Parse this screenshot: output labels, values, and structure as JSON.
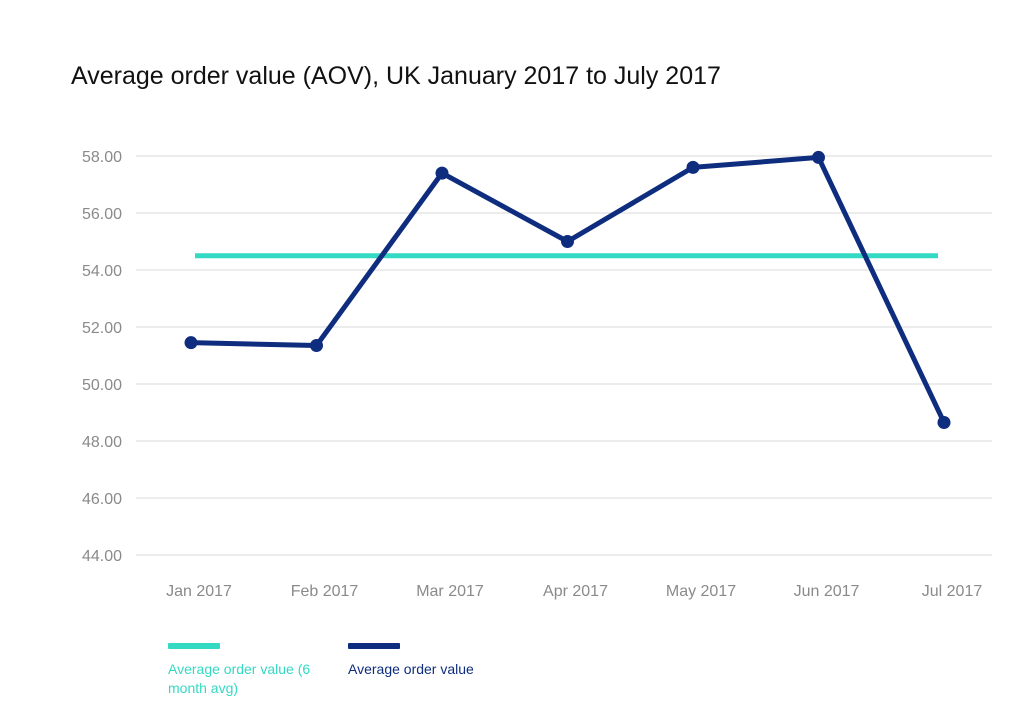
{
  "chart_data": {
    "type": "line",
    "title": "Average order value (AOV), UK January 2017 to July 2017",
    "categories": [
      "Jan 2017",
      "Feb 2017",
      "Mar 2017",
      "Apr 2017",
      "May 2017",
      "Jun 2017",
      "Jul 2017"
    ],
    "y_ticks": [
      "44.00",
      "46.00",
      "48.00",
      "50.00",
      "52.00",
      "54.00",
      "56.00",
      "58.00"
    ],
    "ylim": [
      44,
      58
    ],
    "grid": true,
    "legend_position": "bottom-left",
    "series": [
      {
        "name": "Average order value",
        "color": "#0f2d7e",
        "values": [
          51.45,
          51.35,
          57.4,
          55.0,
          57.6,
          57.95,
          48.65
        ]
      },
      {
        "name": "Average order value (6 month avg)",
        "color": "#34d9c3",
        "values": [
          54.5,
          54.5,
          54.5,
          54.5,
          54.5,
          54.5,
          54.5
        ]
      }
    ]
  }
}
